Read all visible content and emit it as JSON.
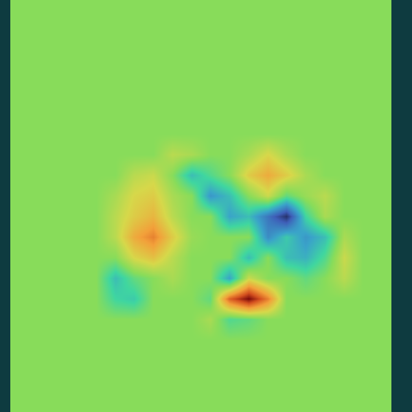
{
  "chart_data": {
    "type": "heatmap",
    "x": [
      0,
      1,
      2,
      3,
      4,
      5,
      6,
      7,
      8,
      9,
      10,
      11,
      12,
      13,
      14,
      15,
      16,
      17,
      18,
      19
    ],
    "y": [
      0,
      1,
      2,
      3,
      4,
      5,
      6,
      7,
      8,
      9,
      10,
      11,
      12,
      13,
      14,
      15,
      16,
      17,
      18,
      19
    ],
    "xlim": [
      -0.5,
      19.5
    ],
    "ylim": [
      19.5,
      -0.5
    ],
    "zlim": [
      -1,
      1
    ],
    "tick_labels": false,
    "z": [
      [
        0,
        0,
        0,
        0,
        0,
        0,
        0,
        0,
        0,
        0,
        0,
        0,
        0,
        0,
        0,
        0,
        0,
        0,
        0,
        0
      ],
      [
        0,
        0,
        0,
        0,
        0,
        0,
        0,
        0,
        0,
        0,
        0,
        0,
        0,
        0,
        0,
        0,
        0,
        0,
        0,
        0
      ],
      [
        0,
        0,
        0,
        0,
        0,
        0,
        0,
        0,
        0,
        0,
        0,
        0,
        0,
        0,
        0,
        0,
        0,
        0,
        0,
        0
      ],
      [
        0,
        0,
        0,
        0,
        0,
        0,
        0,
        0,
        0,
        0,
        0,
        0,
        0,
        0,
        0,
        0,
        0,
        0,
        0,
        0
      ],
      [
        0,
        0,
        0,
        0,
        0,
        0,
        0,
        0,
        0,
        0,
        0,
        0,
        0,
        0,
        0,
        0,
        0,
        0,
        0,
        0
      ],
      [
        0,
        0,
        0,
        0,
        0,
        0,
        0,
        0,
        0,
        0,
        0,
        0,
        0,
        0,
        0,
        0,
        0,
        0,
        0,
        0
      ],
      [
        0,
        0,
        0,
        0,
        0,
        0,
        0,
        0,
        0,
        0,
        0,
        0,
        0,
        0,
        0,
        0,
        0,
        0,
        0,
        0
      ],
      [
        0,
        0,
        0,
        0,
        0,
        0,
        0,
        0,
        0.15,
        0.1,
        0,
        0,
        0.1,
        0.25,
        0.1,
        0,
        0,
        0,
        0,
        0
      ],
      [
        0,
        0,
        0,
        0,
        0,
        0,
        0.15,
        0.2,
        0,
        -0.3,
        -0.15,
        0,
        0.3,
        0.45,
        0.3,
        0.1,
        0,
        0,
        0,
        0
      ],
      [
        0,
        0,
        0,
        0,
        0,
        0.1,
        0.25,
        0.3,
        0.1,
        0,
        -0.45,
        -0.3,
        0,
        0.2,
        -0.1,
        0.05,
        0.15,
        0,
        0,
        0
      ],
      [
        0,
        0,
        0,
        0,
        0,
        0.15,
        0.3,
        0.4,
        0.15,
        0,
        0,
        -0.4,
        -0.3,
        -0.6,
        -0.9,
        -0.2,
        0.1,
        0,
        0,
        0
      ],
      [
        0,
        0,
        0,
        0,
        0,
        0.15,
        0.45,
        0.6,
        0.3,
        0.05,
        0,
        0,
        0,
        -0.5,
        -0.25,
        -0.45,
        -0.3,
        0.1,
        0,
        0
      ],
      [
        0,
        0,
        0,
        0,
        0,
        0,
        0.25,
        0.35,
        0.15,
        0,
        0,
        0,
        -0.3,
        0,
        -0.3,
        -0.35,
        -0.15,
        0.2,
        0,
        0
      ],
      [
        0,
        0,
        0,
        0,
        0,
        -0.3,
        -0.1,
        0,
        0.1,
        0,
        0,
        -0.4,
        0.2,
        0,
        0,
        -0.1,
        0,
        0.15,
        0,
        0
      ],
      [
        0,
        0,
        0,
        0,
        0,
        -0.2,
        -0.25,
        0,
        0,
        0,
        -0.1,
        0.7,
        1.0,
        0.6,
        0,
        0,
        0,
        0,
        0,
        0
      ],
      [
        0,
        0,
        0,
        0,
        0,
        0,
        0,
        0,
        0,
        0,
        0.1,
        -0.15,
        -0.1,
        0,
        0,
        0,
        0,
        0,
        0,
        0
      ],
      [
        0,
        0,
        0,
        0,
        0,
        0,
        0,
        0,
        0,
        0,
        0,
        0,
        0,
        0,
        0,
        0,
        0,
        0,
        0,
        0
      ],
      [
        0,
        0,
        0,
        0,
        0,
        0,
        0,
        0,
        0,
        0,
        0,
        0,
        0,
        0,
        0,
        0,
        0,
        0,
        0,
        0
      ],
      [
        0,
        0,
        0,
        0,
        0,
        0,
        0,
        0,
        0,
        0,
        0,
        0,
        0,
        0,
        0,
        0,
        0,
        0,
        0,
        0
      ],
      [
        0,
        0,
        0,
        0,
        0,
        0,
        0,
        0,
        0,
        0,
        0,
        0,
        0,
        0,
        0,
        0,
        0,
        0,
        0,
        0
      ]
    ]
  }
}
